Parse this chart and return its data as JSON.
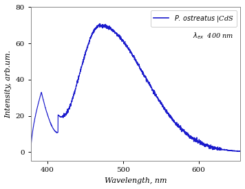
{
  "line_color": "#1a1acc",
  "xlabel": "Wavelength, nm",
  "ylabel": "Intensity, arb.um.",
  "xlim": [
    378,
    655
  ],
  "ylim": [
    -5,
    80
  ],
  "yticks": [
    0,
    20,
    40,
    60,
    80
  ],
  "xticks": [
    400,
    500,
    600
  ],
  "legend_line1": "$P.\\,ostreatus$ |CdS",
  "legend_line2": "$\\lambda_{ex}$  400 nm",
  "peak_wavelength": 470,
  "background_color": "#ffffff",
  "spine_color": "#888888"
}
